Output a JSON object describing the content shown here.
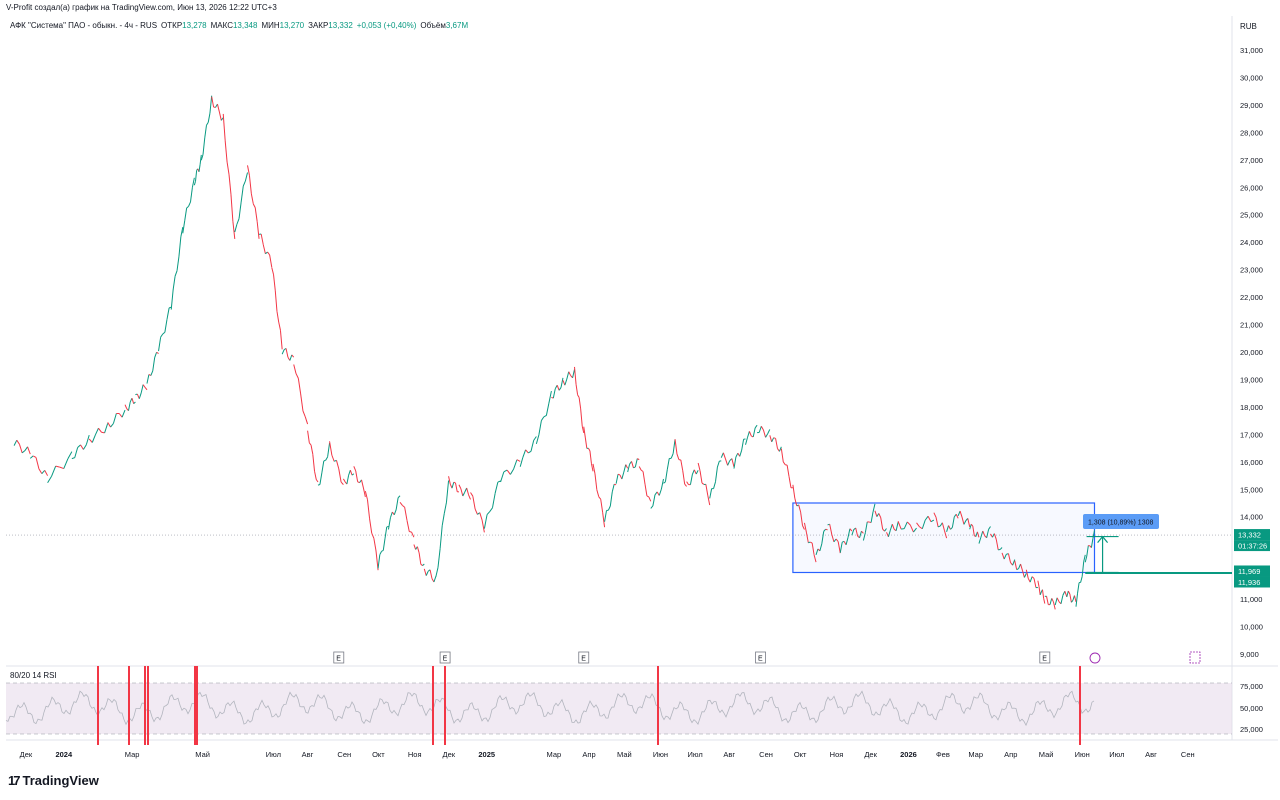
{
  "header": {
    "author_line": "V-Profit создал(а) график на TradingView.com, Июн 13, 2026 12:22 UTC+3",
    "symbol": "АФК \"Система\" ПАО - обыкн. - 4ч - RUS",
    "open_label": "ОТКР",
    "open_value": "13,278",
    "high_label": "МАКС",
    "high_value": "13,348",
    "low_label": "МИН",
    "low_value": "13,270",
    "close_label": "ЗАКР",
    "close_value": "13,332",
    "change": "+0,053 (+0,40%)",
    "volume_label": "Объём",
    "volume_value": "3,67M",
    "currency": "RUB"
  },
  "price_badges": {
    "last_price": "13,332",
    "countdown": "01:37:26",
    "level_upper": "11,969",
    "level_lower": "11,936",
    "measure_label": "1,308 (10,89%) 1308"
  },
  "rsi": {
    "label": "80/20 14 RSI",
    "ticks": [
      "75,000",
      "50,000",
      "25,000"
    ]
  },
  "footer": {
    "logo_text": "TradingView"
  },
  "colors": {
    "up": "#089981",
    "down": "#f23645",
    "box": "#2962ff",
    "level": "#089981",
    "rsi_band": "#e6d8ea",
    "rsi_line": "#b2b5be",
    "measure_badge": "#5b9cf6"
  },
  "chart_data": {
    "type": "line",
    "title": "АФК \"Система\" ПАО - обыкн. - 4ч - RUS",
    "xlabel": "",
    "ylabel": "",
    "ylim": [
      9000,
      31000
    ],
    "y_ticks": [
      "31,000",
      "30,000",
      "29,000",
      "28,000",
      "27,000",
      "26,000",
      "25,000",
      "24,000",
      "23,000",
      "22,000",
      "21,000",
      "20,000",
      "19,000",
      "18,000",
      "17,000",
      "16,000",
      "15,000",
      "14,000",
      "13,000",
      "12,000",
      "11,000",
      "10,000",
      "9,000"
    ],
    "x_ticks": [
      "Дек",
      "2024",
      "Мар",
      "Май",
      "Июл",
      "Авг",
      "Сен",
      "Окт",
      "Ноя",
      "Дек",
      "2025",
      "Мар",
      "Апр",
      "Май",
      "Июн",
      "Июл",
      "Авг",
      "Сен",
      "Окт",
      "Ноя",
      "Дек",
      "2026",
      "Фев",
      "Мар",
      "Апр",
      "Май",
      "Июн",
      "Июл",
      "Авг",
      "Сен"
    ],
    "series": [
      {
        "x": [
          "2023-11-21",
          "2023-12-05",
          "2023-12-20",
          "2024-01-10",
          "2024-01-25",
          "2024-02-10",
          "2024-02-25",
          "2024-03-05",
          "2024-03-15",
          "2024-03-25",
          "2024-04-05",
          "2024-04-15",
          "2024-04-25",
          "2024-05-01",
          "2024-05-10",
          "2024-05-20",
          "2024-05-30",
          "2024-06-10",
          "2024-06-20",
          "2024-07-01",
          "2024-07-10",
          "2024-07-20",
          "2024-08-01",
          "2024-08-10",
          "2024-08-20",
          "2024-09-01",
          "2024-09-10",
          "2024-09-20",
          "2024-10-01",
          "2024-10-10",
          "2024-10-20",
          "2024-11-01",
          "2024-11-10",
          "2024-11-20",
          "2024-12-01",
          "2024-12-10",
          "2024-12-20",
          "2025-01-01",
          "2025-01-15",
          "2025-02-01",
          "2025-02-15",
          "2025-02-28",
          "2025-03-10",
          "2025-03-20",
          "2025-03-28",
          "2025-04-05",
          "2025-04-15",
          "2025-04-25",
          "2025-05-05",
          "2025-05-15",
          "2025-05-25",
          "2025-06-05",
          "2025-06-15",
          "2025-06-25",
          "2025-07-05",
          "2025-07-15",
          "2025-07-25",
          "2025-08-05",
          "2025-08-15",
          "2025-08-25",
          "2025-09-05",
          "2025-09-15",
          "2025-09-25",
          "2025-10-05",
          "2025-10-15",
          "2025-10-25",
          "2025-11-05",
          "2025-11-15",
          "2025-11-25",
          "2025-12-05",
          "2025-12-15",
          "2025-12-25",
          "2026-01-10",
          "2026-01-25",
          "2026-02-05",
          "2026-02-15",
          "2026-02-25",
          "2026-03-05",
          "2026-03-15",
          "2026-03-25",
          "2026-04-05",
          "2026-04-15",
          "2026-04-25",
          "2026-05-01",
          "2026-05-10",
          "2026-05-20",
          "2026-05-28",
          "2026-06-05",
          "2026-06-13"
        ],
        "values": [
          16700,
          16300,
          15400,
          16200,
          16800,
          17300,
          17900,
          18300,
          18800,
          20100,
          21700,
          24500,
          26200,
          27000,
          29200,
          28500,
          24200,
          26700,
          24300,
          23200,
          20100,
          19700,
          17200,
          15100,
          16600,
          15200,
          15700,
          14900,
          12200,
          13700,
          14700,
          13100,
          12100,
          11700,
          15300,
          15000,
          14800,
          13600,
          15400,
          16000,
          16800,
          18400,
          18900,
          19300,
          17100,
          15800,
          13800,
          15300,
          15800,
          16000,
          14400,
          15200,
          16700,
          15100,
          15800,
          14600,
          16200,
          15900,
          16800,
          17200,
          17000,
          16400,
          15000,
          13600,
          12500,
          13700,
          12800,
          13500,
          13300,
          14300,
          13400,
          13700,
          13600,
          14000,
          13400,
          14100,
          13700,
          13200,
          13500,
          12700,
          12300,
          11900,
          11500,
          11000,
          10800,
          11200,
          10900,
          12500,
          13332
        ]
      }
    ],
    "annotations": {
      "range_box": {
        "x_start": "2025-09-25",
        "x_end": "2026-06-13",
        "y_low": 11969,
        "y_high": 14500
      },
      "level_line": 11950,
      "measure": {
        "from": 11969,
        "to": 13277,
        "text": "1,308 (10,89%) 1308"
      },
      "earnings_markers": [
        "2024-08-28",
        "2024-11-28",
        "2025-03-28",
        "2025-08-28",
        "2026-05-01"
      ]
    },
    "grid": false,
    "legend": "top-left"
  }
}
